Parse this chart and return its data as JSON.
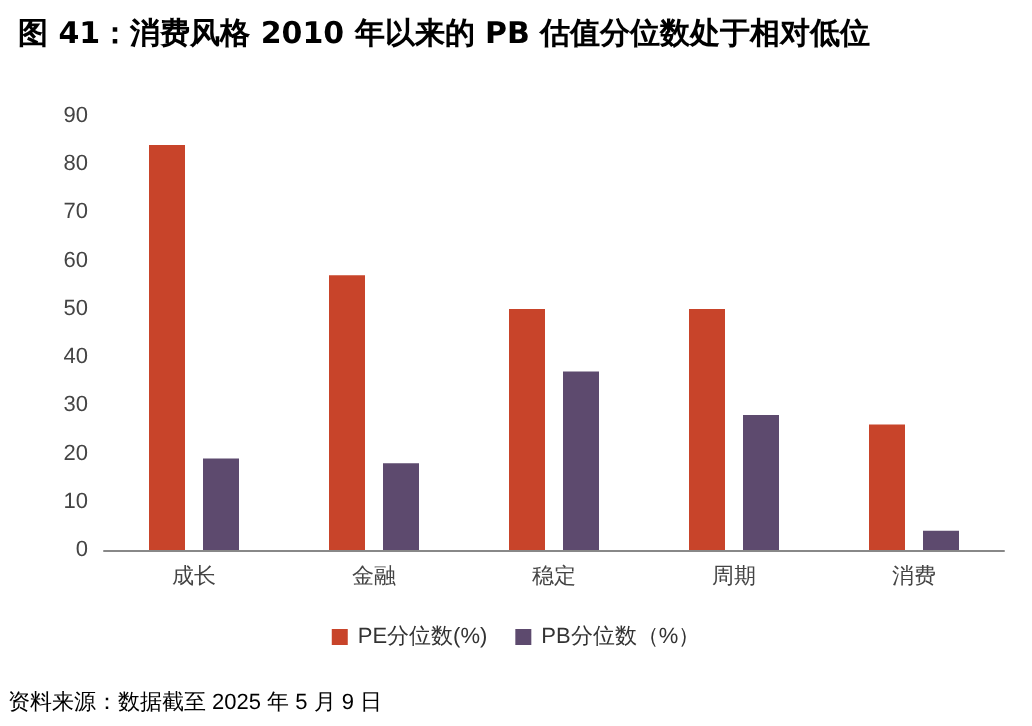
{
  "chart_data": {
    "type": "bar",
    "title": "图 41：消费风格 2010 年以来的 PB 估值分位数处于相对低位",
    "categories": [
      "成长",
      "金融",
      "稳定",
      "周期",
      "消费"
    ],
    "series": [
      {
        "name": "PE分位数(%)",
        "color": "#c8442a",
        "values": [
          84,
          57,
          50,
          50,
          26
        ]
      },
      {
        "name": "PB分位数（%）",
        "color": "#5d4a6e",
        "values": [
          19,
          18,
          37,
          28,
          4
        ]
      }
    ],
    "ylim": [
      0,
      90
    ],
    "yticks": [
      0,
      10,
      20,
      30,
      40,
      50,
      60,
      70,
      80,
      90
    ],
    "grid": false,
    "legend": "bottom",
    "annotations": [
      "资料来源：数据截至 2025 年 5 月 9 日"
    ]
  }
}
